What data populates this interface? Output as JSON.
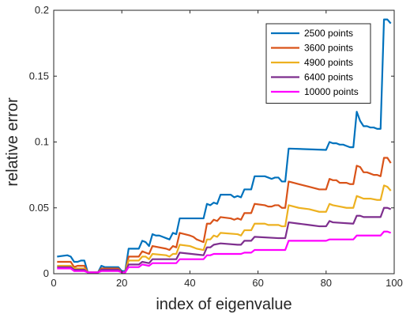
{
  "chart_data": {
    "type": "line",
    "xlabel": "index of eigenvalue",
    "ylabel": "relative error",
    "xlim": [
      0,
      100
    ],
    "ylim": [
      0,
      0.2
    ],
    "x_ticks": [
      0,
      20,
      40,
      60,
      80,
      100
    ],
    "x_tick_labels": [
      "0",
      "20",
      "40",
      "60",
      "80",
      "100"
    ],
    "y_ticks": [
      0,
      0.05,
      0.1,
      0.15,
      0.2
    ],
    "y_tick_labels": [
      "0",
      "0.05",
      "0.1",
      "0.15",
      "0.2"
    ],
    "grid": false,
    "box": true,
    "legend_position": "top-right",
    "series": [
      {
        "name": "2500 points",
        "color": "#0072BD",
        "points": [
          [
            1,
            0.013
          ],
          [
            4,
            0.014
          ],
          [
            5,
            0.013
          ],
          [
            6,
            0.009
          ],
          [
            7,
            0.009
          ],
          [
            8,
            0.01
          ],
          [
            9,
            0.01
          ],
          [
            10,
            0.001
          ],
          [
            12,
            0.001
          ],
          [
            13,
            0.001
          ],
          [
            14,
            0.006
          ],
          [
            15,
            0.005
          ],
          [
            19,
            0.005
          ],
          [
            20,
            0.002
          ],
          [
            21,
            0.002
          ],
          [
            22,
            0.019
          ],
          [
            25,
            0.019
          ],
          [
            26,
            0.025
          ],
          [
            27,
            0.024
          ],
          [
            28,
            0.021
          ],
          [
            29,
            0.03
          ],
          [
            30,
            0.029
          ],
          [
            31,
            0.029
          ],
          [
            32,
            0.028
          ],
          [
            33,
            0.027
          ],
          [
            34,
            0.026
          ],
          [
            35,
            0.031
          ],
          [
            36,
            0.03
          ],
          [
            37,
            0.042
          ],
          [
            44,
            0.042
          ],
          [
            45,
            0.053
          ],
          [
            46,
            0.052
          ],
          [
            47,
            0.054
          ],
          [
            48,
            0.053
          ],
          [
            49,
            0.06
          ],
          [
            52,
            0.06
          ],
          [
            53,
            0.058
          ],
          [
            54,
            0.059
          ],
          [
            55,
            0.058
          ],
          [
            56,
            0.064
          ],
          [
            58,
            0.064
          ],
          [
            59,
            0.074
          ],
          [
            62,
            0.074
          ],
          [
            63,
            0.073
          ],
          [
            64,
            0.072
          ],
          [
            65,
            0.073
          ],
          [
            66,
            0.073
          ],
          [
            67,
            0.07
          ],
          [
            68,
            0.07
          ],
          [
            69,
            0.095
          ],
          [
            80,
            0.094
          ],
          [
            81,
            0.1
          ],
          [
            82,
            0.099
          ],
          [
            83,
            0.099
          ],
          [
            84,
            0.098
          ],
          [
            85,
            0.098
          ],
          [
            86,
            0.097
          ],
          [
            87,
            0.096
          ],
          [
            88,
            0.096
          ],
          [
            89,
            0.123
          ],
          [
            90,
            0.116
          ],
          [
            91,
            0.112
          ],
          [
            92,
            0.112
          ],
          [
            93,
            0.111
          ],
          [
            94,
            0.111
          ],
          [
            95,
            0.11
          ],
          [
            96,
            0.11
          ],
          [
            97,
            0.193
          ],
          [
            98,
            0.193
          ],
          [
            99,
            0.19
          ]
        ]
      },
      {
        "name": "3600 points",
        "color": "#D95319",
        "points": [
          [
            1,
            0.009
          ],
          [
            4,
            0.009
          ],
          [
            5,
            0.009
          ],
          [
            6,
            0.005
          ],
          [
            7,
            0.006
          ],
          [
            8,
            0.006
          ],
          [
            9,
            0.006
          ],
          [
            10,
            0.001
          ],
          [
            13,
            0.001
          ],
          [
            14,
            0.004
          ],
          [
            19,
            0.004
          ],
          [
            20,
            0.001
          ],
          [
            21,
            0.001
          ],
          [
            22,
            0.013
          ],
          [
            25,
            0.013
          ],
          [
            26,
            0.017
          ],
          [
            27,
            0.016
          ],
          [
            28,
            0.015
          ],
          [
            29,
            0.021
          ],
          [
            33,
            0.019
          ],
          [
            34,
            0.018
          ],
          [
            35,
            0.021
          ],
          [
            36,
            0.02
          ],
          [
            37,
            0.031
          ],
          [
            40,
            0.029
          ],
          [
            41,
            0.028
          ],
          [
            42,
            0.026
          ],
          [
            43,
            0.025
          ],
          [
            44,
            0.024
          ],
          [
            45,
            0.038
          ],
          [
            46,
            0.038
          ],
          [
            47,
            0.041
          ],
          [
            48,
            0.04
          ],
          [
            49,
            0.043
          ],
          [
            52,
            0.042
          ],
          [
            53,
            0.041
          ],
          [
            54,
            0.042
          ],
          [
            55,
            0.041
          ],
          [
            56,
            0.046
          ],
          [
            58,
            0.046
          ],
          [
            59,
            0.053
          ],
          [
            62,
            0.052
          ],
          [
            63,
            0.051
          ],
          [
            64,
            0.051
          ],
          [
            65,
            0.052
          ],
          [
            66,
            0.052
          ],
          [
            67,
            0.05
          ],
          [
            68,
            0.05
          ],
          [
            69,
            0.07
          ],
          [
            72,
            0.068
          ],
          [
            75,
            0.066
          ],
          [
            78,
            0.064
          ],
          [
            80,
            0.064
          ],
          [
            81,
            0.072
          ],
          [
            82,
            0.071
          ],
          [
            83,
            0.071
          ],
          [
            84,
            0.069
          ],
          [
            85,
            0.069
          ],
          [
            86,
            0.069
          ],
          [
            87,
            0.068
          ],
          [
            88,
            0.068
          ],
          [
            89,
            0.082
          ],
          [
            90,
            0.081
          ],
          [
            91,
            0.077
          ],
          [
            92,
            0.077
          ],
          [
            93,
            0.076
          ],
          [
            94,
            0.075
          ],
          [
            95,
            0.075
          ],
          [
            96,
            0.074
          ],
          [
            97,
            0.088
          ],
          [
            98,
            0.088
          ],
          [
            99,
            0.084
          ]
        ]
      },
      {
        "name": "4900 points",
        "color": "#EDB120",
        "points": [
          [
            1,
            0.006
          ],
          [
            5,
            0.006
          ],
          [
            6,
            0.004
          ],
          [
            9,
            0.004
          ],
          [
            10,
            0.001
          ],
          [
            13,
            0.001
          ],
          [
            14,
            0.003
          ],
          [
            19,
            0.003
          ],
          [
            20,
            0.001
          ],
          [
            21,
            0.001
          ],
          [
            22,
            0.01
          ],
          [
            25,
            0.01
          ],
          [
            26,
            0.013
          ],
          [
            27,
            0.013
          ],
          [
            28,
            0.011
          ],
          [
            29,
            0.015
          ],
          [
            33,
            0.014
          ],
          [
            34,
            0.013
          ],
          [
            35,
            0.015
          ],
          [
            36,
            0.015
          ],
          [
            37,
            0.022
          ],
          [
            40,
            0.021
          ],
          [
            41,
            0.02
          ],
          [
            42,
            0.019
          ],
          [
            44,
            0.018
          ],
          [
            45,
            0.026
          ],
          [
            46,
            0.026
          ],
          [
            47,
            0.029
          ],
          [
            48,
            0.028
          ],
          [
            49,
            0.031
          ],
          [
            54,
            0.03
          ],
          [
            55,
            0.029
          ],
          [
            56,
            0.033
          ],
          [
            58,
            0.033
          ],
          [
            59,
            0.038
          ],
          [
            62,
            0.038
          ],
          [
            63,
            0.037
          ],
          [
            66,
            0.037
          ],
          [
            67,
            0.036
          ],
          [
            68,
            0.036
          ],
          [
            69,
            0.052
          ],
          [
            72,
            0.05
          ],
          [
            75,
            0.049
          ],
          [
            78,
            0.047
          ],
          [
            80,
            0.047
          ],
          [
            81,
            0.053
          ],
          [
            82,
            0.052
          ],
          [
            84,
            0.051
          ],
          [
            86,
            0.05
          ],
          [
            88,
            0.05
          ],
          [
            89,
            0.059
          ],
          [
            90,
            0.058
          ],
          [
            91,
            0.057
          ],
          [
            93,
            0.057
          ],
          [
            95,
            0.056
          ],
          [
            96,
            0.056
          ],
          [
            97,
            0.067
          ],
          [
            98,
            0.066
          ],
          [
            99,
            0.063
          ]
        ]
      },
      {
        "name": "6400 points",
        "color": "#7E2F8E",
        "points": [
          [
            1,
            0.005
          ],
          [
            5,
            0.005
          ],
          [
            6,
            0.003
          ],
          [
            9,
            0.003
          ],
          [
            10,
            0.001
          ],
          [
            13,
            0.001
          ],
          [
            14,
            0.003
          ],
          [
            19,
            0.003
          ],
          [
            20,
            0.001
          ],
          [
            21,
            0.001
          ],
          [
            22,
            0.007
          ],
          [
            25,
            0.007
          ],
          [
            26,
            0.009
          ],
          [
            28,
            0.008
          ],
          [
            29,
            0.011
          ],
          [
            36,
            0.011
          ],
          [
            37,
            0.016
          ],
          [
            44,
            0.014
          ],
          [
            45,
            0.02
          ],
          [
            46,
            0.02
          ],
          [
            47,
            0.022
          ],
          [
            49,
            0.023
          ],
          [
            54,
            0.022
          ],
          [
            55,
            0.022
          ],
          [
            56,
            0.025
          ],
          [
            58,
            0.025
          ],
          [
            59,
            0.028
          ],
          [
            66,
            0.027
          ],
          [
            67,
            0.027
          ],
          [
            68,
            0.027
          ],
          [
            69,
            0.039
          ],
          [
            72,
            0.038
          ],
          [
            75,
            0.037
          ],
          [
            78,
            0.036
          ],
          [
            80,
            0.036
          ],
          [
            81,
            0.04
          ],
          [
            82,
            0.039
          ],
          [
            88,
            0.038
          ],
          [
            89,
            0.044
          ],
          [
            90,
            0.044
          ],
          [
            91,
            0.043
          ],
          [
            96,
            0.043
          ],
          [
            97,
            0.05
          ],
          [
            98,
            0.05
          ],
          [
            99,
            0.049
          ]
        ]
      },
      {
        "name": "10000 points",
        "color": "#FF00FF",
        "points": [
          [
            1,
            0.004
          ],
          [
            5,
            0.004
          ],
          [
            6,
            0.002
          ],
          [
            9,
            0.002
          ],
          [
            10,
            0.001
          ],
          [
            13,
            0.001
          ],
          [
            14,
            0.002
          ],
          [
            19,
            0.002
          ],
          [
            20,
            0.001
          ],
          [
            21,
            0.001
          ],
          [
            22,
            0.005
          ],
          [
            25,
            0.005
          ],
          [
            26,
            0.007
          ],
          [
            28,
            0.006
          ],
          [
            29,
            0.008
          ],
          [
            36,
            0.008
          ],
          [
            37,
            0.011
          ],
          [
            44,
            0.011
          ],
          [
            45,
            0.014
          ],
          [
            46,
            0.014
          ],
          [
            47,
            0.015
          ],
          [
            54,
            0.015
          ],
          [
            55,
            0.015
          ],
          [
            56,
            0.016
          ],
          [
            58,
            0.016
          ],
          [
            59,
            0.018
          ],
          [
            68,
            0.018
          ],
          [
            69,
            0.025
          ],
          [
            80,
            0.025
          ],
          [
            81,
            0.026
          ],
          [
            88,
            0.026
          ],
          [
            89,
            0.029
          ],
          [
            96,
            0.029
          ],
          [
            97,
            0.032
          ],
          [
            98,
            0.032
          ],
          [
            99,
            0.031
          ]
        ]
      }
    ]
  }
}
